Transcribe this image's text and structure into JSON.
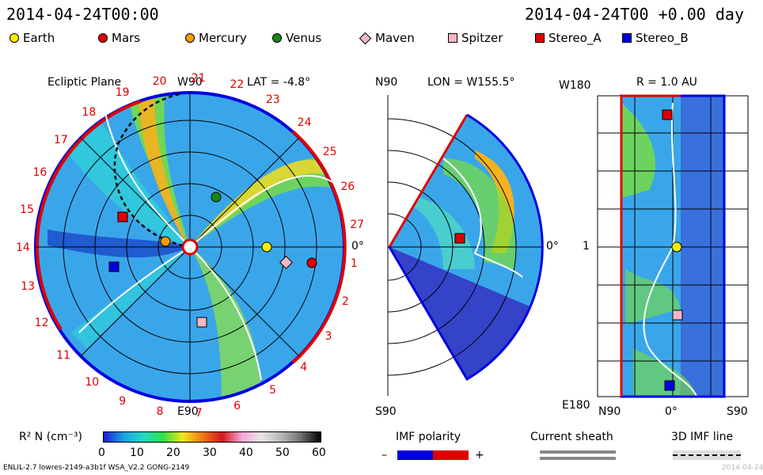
{
  "header": {
    "time_left": "2014-04-24T00:00",
    "time_right": "2014-04-24T00 +0.00 day"
  },
  "legend": [
    {
      "label": "Earth",
      "color": "#ffee00",
      "shape": "circle"
    },
    {
      "label": "Mars",
      "color": "#e00000",
      "shape": "circle"
    },
    {
      "label": "Mercury",
      "color": "#ff9900",
      "shape": "circle"
    },
    {
      "label": "Venus",
      "color": "#138a13",
      "shape": "circle"
    },
    {
      "label": "Maven",
      "color": "#f4b6c2",
      "shape": "diamond"
    },
    {
      "label": "Spitzer",
      "color": "#f4b6c2",
      "shape": "square"
    },
    {
      "label": "Stereo_A",
      "color": "#e00000",
      "shape": "square"
    },
    {
      "label": "Stereo_B",
      "color": "#0000e0",
      "shape": "square"
    }
  ],
  "ecliptic": {
    "title": "Ecliptic Plane",
    "lat_label": "LAT = -4.8°",
    "top_label": "W90",
    "bottom_label": "E90",
    "right_label": "0°",
    "sector_numbers": [
      "1",
      "2",
      "3",
      "4",
      "5",
      "6",
      "7",
      "8",
      "9",
      "10",
      "11",
      "12",
      "13",
      "14",
      "15",
      "16",
      "17",
      "18",
      "19",
      "20",
      "21",
      "22",
      "23",
      "24",
      "25",
      "26",
      "27"
    ]
  },
  "meridional": {
    "lon_label": "LON = W155.5°",
    "top_label": "N90",
    "bottom_label": "S90",
    "right_label": "0°"
  },
  "radial": {
    "r_label": "R = 1.0 AU",
    "top_label": "W180",
    "bottom_label": "E180",
    "mid_label": "1",
    "x_labels": [
      "N90",
      "0°",
      "S90"
    ]
  },
  "colorbar": {
    "label": "R² N (cm⁻³)",
    "ticks": [
      "0",
      "10",
      "20",
      "30",
      "40",
      "50",
      "60"
    ]
  },
  "imf_legend": {
    "polarity_title": "IMF polarity",
    "minus": "–",
    "plus": "+",
    "sheath_title": "Current sheath",
    "line3d_title": "3D IMF line"
  },
  "footer": {
    "left": "ENLIL-2.7 lowres-2149-a3b1f WSA_V2.2 GONG-2149",
    "right_date": "2014-04-24"
  }
}
